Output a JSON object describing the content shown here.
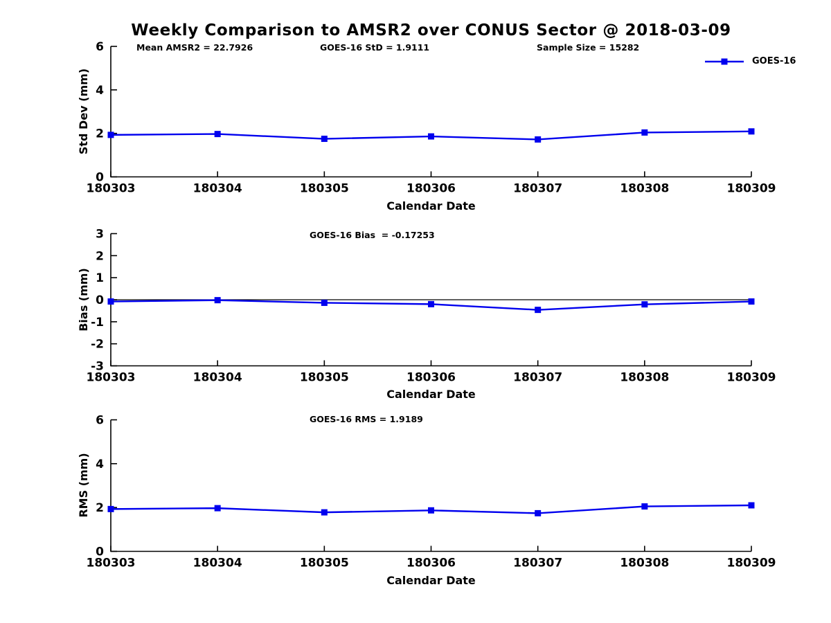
{
  "title": "Weekly Comparison to AMSR2 over CONUS Sector @ 2018-03-09",
  "colors": {
    "line": "#0000EE",
    "axis": "#000000",
    "text": "#000000"
  },
  "legend": {
    "label": "GOES-16"
  },
  "chart_data": [
    {
      "type": "line",
      "ylabel": "Std Dev (mm)",
      "xlabel": "Calendar Date",
      "categories": [
        "180303",
        "180304",
        "180305",
        "180306",
        "180307",
        "180308",
        "180309"
      ],
      "series": [
        {
          "name": "GOES-16",
          "values": [
            1.93,
            1.97,
            1.75,
            1.86,
            1.72,
            2.04,
            2.09
          ]
        }
      ],
      "ylim": [
        0,
        6
      ],
      "yticks": [
        0,
        2,
        4,
        6
      ],
      "annotations": [
        "Mean AMSR2 = 22.7926",
        "GOES-16 StD = 1.9111",
        "Sample Size = 15282"
      ],
      "legend_position": "top-right",
      "grid": false,
      "zero_line": false
    },
    {
      "type": "line",
      "ylabel": "Bias (mm)",
      "xlabel": "Calendar Date",
      "categories": [
        "180303",
        "180304",
        "180305",
        "180306",
        "180307",
        "180308",
        "180309"
      ],
      "series": [
        {
          "name": "GOES-16",
          "values": [
            -0.08,
            -0.02,
            -0.14,
            -0.2,
            -0.46,
            -0.21,
            -0.08
          ]
        }
      ],
      "ylim": [
        -3,
        3
      ],
      "yticks": [
        -3,
        -2,
        -1,
        0,
        1,
        2,
        3
      ],
      "annotations": [
        "GOES-16 Bias  = -0.17253"
      ],
      "grid": false,
      "zero_line": true
    },
    {
      "type": "line",
      "ylabel": "RMS (mm)",
      "xlabel": "Calendar Date",
      "categories": [
        "180303",
        "180304",
        "180305",
        "180306",
        "180307",
        "180308",
        "180309"
      ],
      "series": [
        {
          "name": "GOES-16",
          "values": [
            1.93,
            1.97,
            1.78,
            1.87,
            1.74,
            2.05,
            2.1
          ]
        }
      ],
      "ylim": [
        0,
        6
      ],
      "yticks": [
        0,
        2,
        4,
        6
      ],
      "annotations": [
        "GOES-16 RMS = 1.9189"
      ],
      "grid": false,
      "zero_line": false
    }
  ]
}
